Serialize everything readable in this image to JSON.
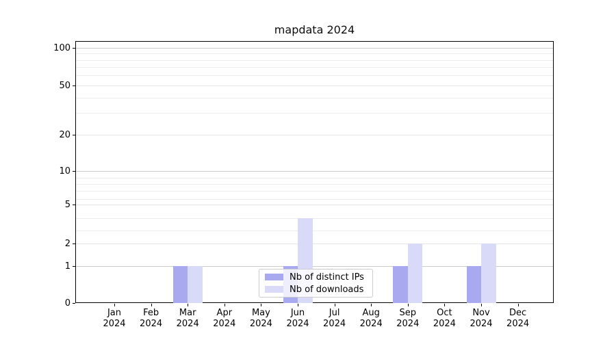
{
  "title": "mapdata 2024",
  "chart_data": {
    "type": "bar",
    "title": "mapdata 2024",
    "categories": [
      {
        "month": "Jan",
        "year": "2024"
      },
      {
        "month": "Feb",
        "year": "2024"
      },
      {
        "month": "Mar",
        "year": "2024"
      },
      {
        "month": "Apr",
        "year": "2024"
      },
      {
        "month": "May",
        "year": "2024"
      },
      {
        "month": "Jun",
        "year": "2024"
      },
      {
        "month": "Jul",
        "year": "2024"
      },
      {
        "month": "Aug",
        "year": "2024"
      },
      {
        "month": "Sep",
        "year": "2024"
      },
      {
        "month": "Oct",
        "year": "2024"
      },
      {
        "month": "Nov",
        "year": "2024"
      },
      {
        "month": "Dec",
        "year": "2024"
      }
    ],
    "series": [
      {
        "name": "Nb of distinct IPs",
        "color": "#a9a9f0",
        "values": [
          0,
          0,
          1,
          0,
          0,
          1,
          0,
          0,
          1,
          0,
          1,
          0
        ]
      },
      {
        "name": "Nb of downloads",
        "color": "#d9d9f8",
        "values": [
          0,
          0,
          1,
          0,
          0,
          4,
          0,
          0,
          2,
          0,
          2,
          0
        ]
      }
    ],
    "ylabel": "",
    "xlabel": "",
    "yscale": "quasi-log (log above ~5, compressed toward 0)",
    "ytick_values": [
      0,
      1,
      2,
      5,
      10,
      20,
      50,
      100
    ],
    "ytick_labels": [
      "0",
      "1",
      "2",
      "5",
      "10",
      "20",
      "50",
      "100"
    ],
    "minor_grid_values": [
      3,
      4,
      6,
      7,
      8,
      9,
      30,
      40,
      60,
      70,
      80,
      90
    ],
    "ylim": [
      0,
      110
    ],
    "grid": "horizontal",
    "legend_position": "lower center",
    "bar_group_width": 0.8
  },
  "legend": {
    "items": [
      {
        "label": "Nb of distinct IPs",
        "color": "#a9a9f0"
      },
      {
        "label": "Nb of downloads",
        "color": "#d9d9f8"
      }
    ]
  },
  "colors": {
    "major_grid": "#c9c9c9",
    "minor_grid": "#ececec",
    "mid_grid": "#e4e4e4",
    "spine": "#000000",
    "background": "#ffffff"
  }
}
